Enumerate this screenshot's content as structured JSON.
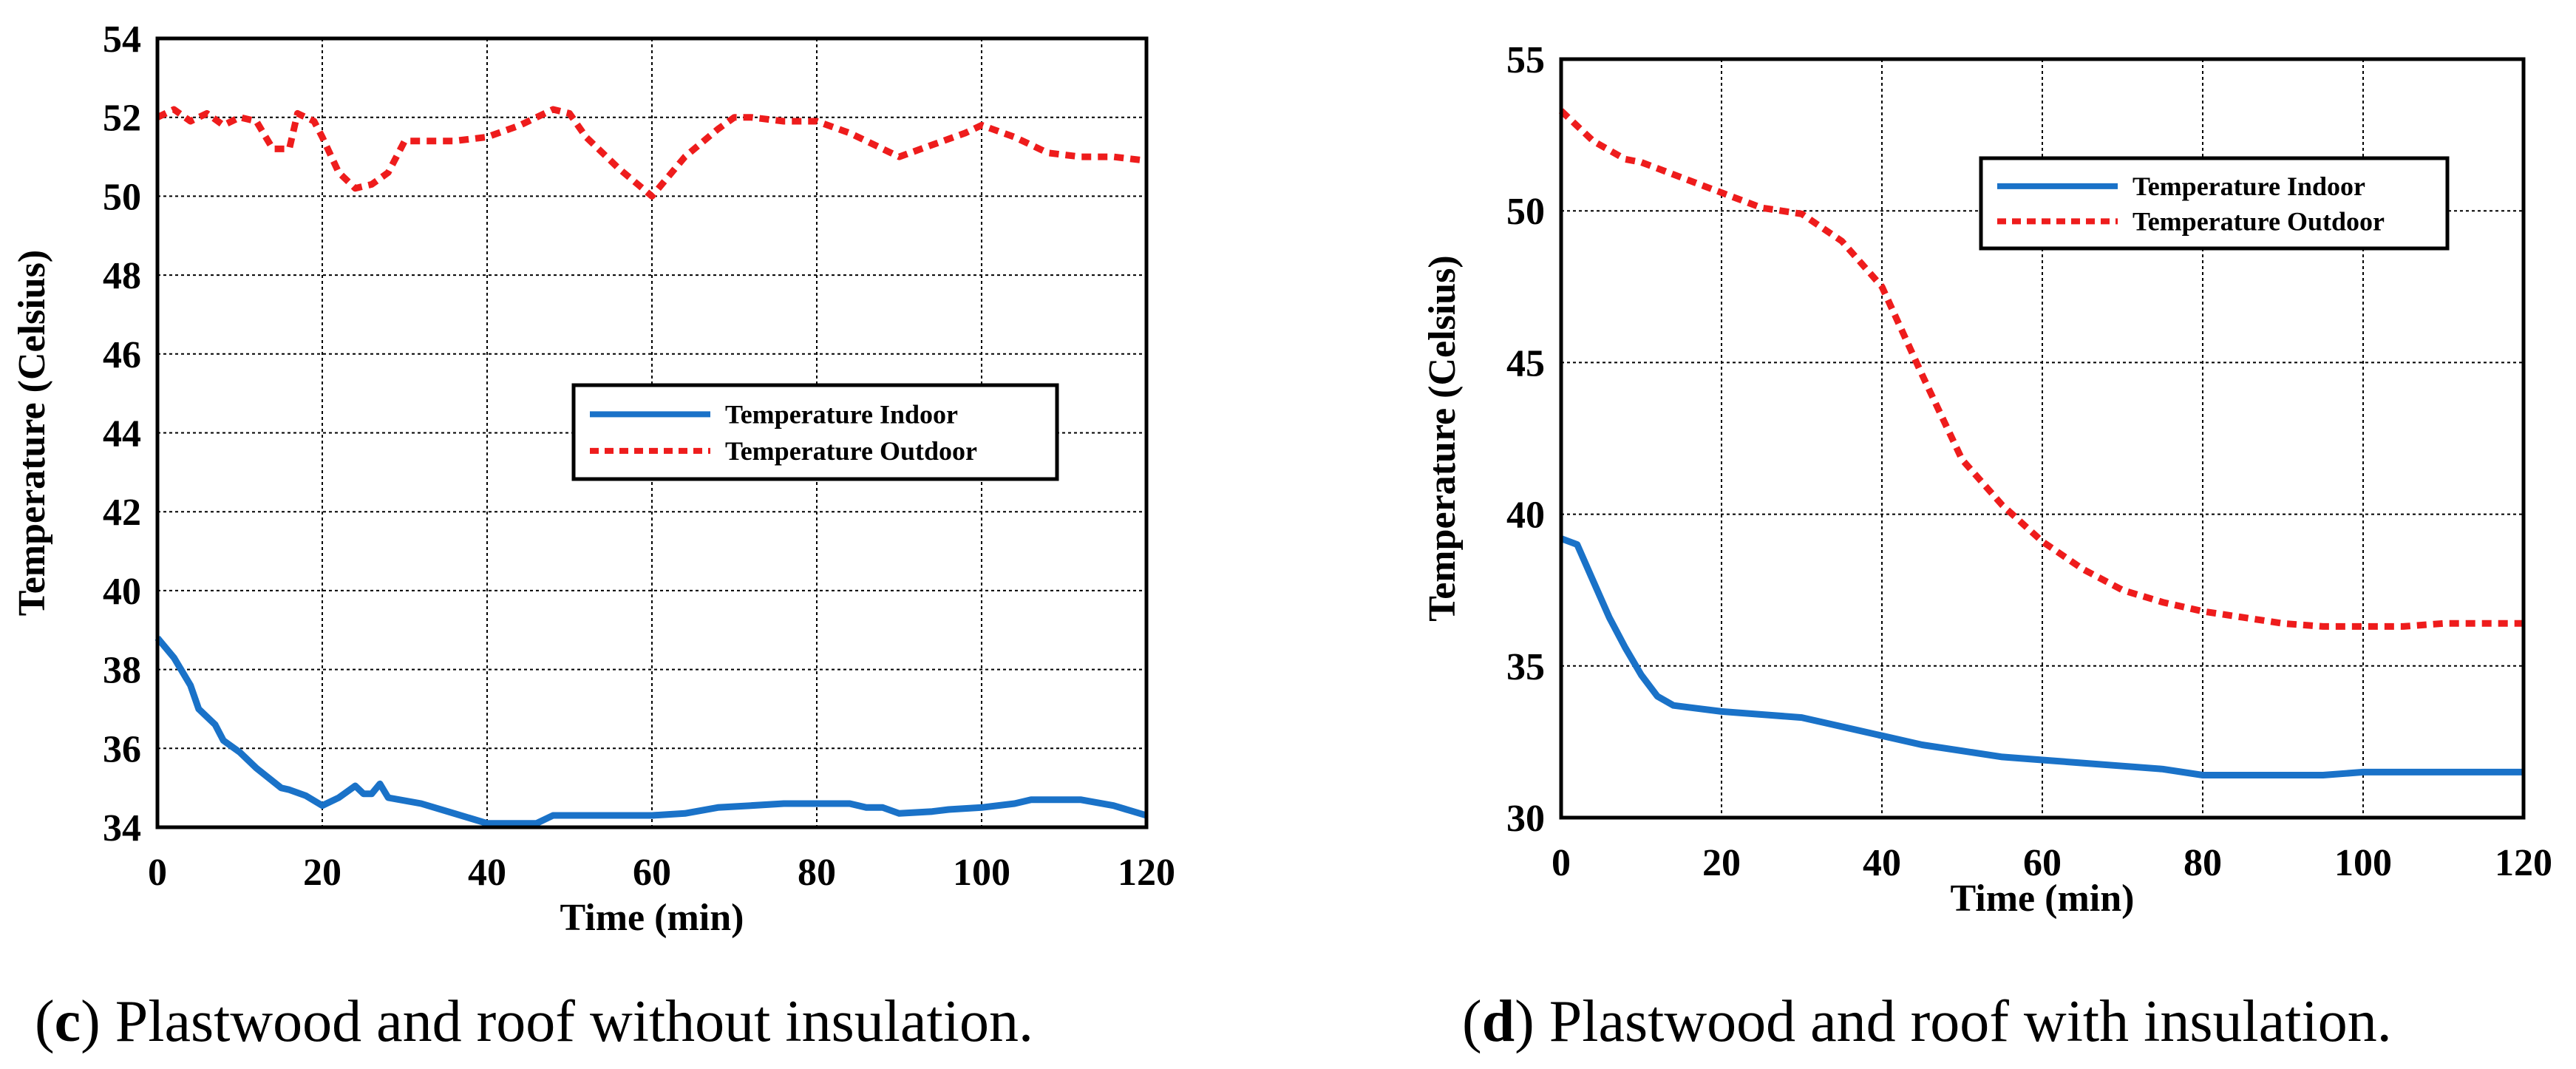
{
  "colors": {
    "indoor": "#1a72c8",
    "outdoor": "#ee1c1c"
  },
  "chart_data": [
    {
      "type": "line",
      "xlabel": "Time (min)",
      "ylabel": "Temperature (Celsius)",
      "xlim": [
        0,
        120
      ],
      "ylim": [
        34,
        54
      ],
      "xticks": [
        0,
        20,
        40,
        60,
        80,
        100,
        120
      ],
      "yticks": [
        34,
        36,
        38,
        40,
        42,
        44,
        46,
        48,
        50,
        52,
        54
      ],
      "grid": true,
      "legend_position": "center-right",
      "caption_letter": "c",
      "caption_text": " Plastwood and roof without insulation.",
      "series": [
        {
          "name": "Temperature Indoor",
          "style": "solid",
          "x": [
            0,
            2,
            4,
            5,
            7,
            8,
            10,
            12,
            15,
            16,
            18,
            20,
            22,
            24,
            25,
            26,
            27,
            28,
            32,
            36,
            40,
            42,
            46,
            48,
            52,
            56,
            60,
            64,
            68,
            72,
            76,
            80,
            84,
            86,
            88,
            90,
            94,
            96,
            100,
            104,
            106,
            108,
            112,
            116,
            120
          ],
          "values": [
            38.8,
            38.3,
            37.6,
            37.0,
            36.6,
            36.2,
            35.9,
            35.5,
            35.0,
            34.95,
            34.8,
            34.55,
            34.75,
            35.05,
            34.85,
            34.85,
            35.1,
            34.75,
            34.6,
            34.35,
            34.1,
            34.1,
            34.1,
            34.3,
            34.3,
            34.3,
            34.3,
            34.35,
            34.5,
            34.55,
            34.6,
            34.6,
            34.6,
            34.5,
            34.5,
            34.35,
            34.4,
            34.45,
            34.5,
            34.6,
            34.7,
            34.7,
            34.7,
            34.55,
            34.3
          ]
        },
        {
          "name": "Temperature Outdoor",
          "style": "dashed",
          "x": [
            0,
            2,
            4,
            6,
            8,
            10,
            12,
            14,
            16,
            17,
            19,
            20,
            22,
            24,
            26,
            28,
            30,
            32,
            36,
            40,
            44,
            48,
            50,
            52,
            56,
            60,
            64,
            68,
            70,
            72,
            76,
            80,
            84,
            88,
            90,
            94,
            98,
            100,
            104,
            108,
            112,
            116,
            120
          ],
          "values": [
            52.0,
            52.2,
            51.9,
            52.1,
            51.8,
            52.0,
            51.9,
            51.2,
            51.2,
            52.1,
            51.9,
            51.5,
            50.6,
            50.2,
            50.3,
            50.6,
            51.4,
            51.4,
            51.4,
            51.5,
            51.8,
            52.2,
            52.1,
            51.5,
            50.7,
            50.0,
            51.0,
            51.7,
            52.0,
            52.0,
            51.9,
            51.9,
            51.6,
            51.2,
            51.0,
            51.3,
            51.6,
            51.8,
            51.5,
            51.1,
            51.0,
            51.0,
            50.9
          ]
        }
      ]
    },
    {
      "type": "line",
      "xlabel": "Time (min)",
      "ylabel": "Temperature (Celsius)",
      "xlim": [
        0,
        120
      ],
      "ylim": [
        30,
        55
      ],
      "xticks": [
        0,
        20,
        40,
        60,
        80,
        100,
        120
      ],
      "yticks": [
        30,
        35,
        40,
        45,
        50,
        55
      ],
      "grid": true,
      "legend_position": "top-right",
      "caption_letter": "d",
      "caption_text": " Plastwood and roof with insulation.",
      "series": [
        {
          "name": "Temperature Indoor",
          "style": "solid",
          "x": [
            0,
            2,
            4,
            6,
            8,
            10,
            12,
            14,
            20,
            25,
            30,
            35,
            40,
            45,
            50,
            55,
            60,
            65,
            70,
            75,
            80,
            85,
            90,
            95,
            100,
            105,
            110,
            115,
            120
          ],
          "values": [
            39.2,
            39.0,
            37.8,
            36.6,
            35.6,
            34.7,
            34.0,
            33.7,
            33.5,
            33.4,
            33.3,
            33.0,
            32.7,
            32.4,
            32.2,
            32.0,
            31.9,
            31.8,
            31.7,
            31.6,
            31.4,
            31.4,
            31.4,
            31.4,
            31.5,
            31.5,
            31.5,
            31.5,
            31.5
          ]
        },
        {
          "name": "Temperature Outdoor",
          "style": "dashed",
          "x": [
            0,
            2,
            4,
            6,
            8,
            10,
            12,
            15,
            18,
            20,
            25,
            30,
            35,
            40,
            45,
            50,
            55,
            60,
            65,
            70,
            75,
            80,
            85,
            90,
            95,
            100,
            105,
            110,
            115,
            120
          ],
          "values": [
            53.3,
            52.8,
            52.3,
            52.0,
            51.7,
            51.6,
            51.4,
            51.1,
            50.8,
            50.6,
            50.1,
            49.9,
            49.0,
            47.5,
            44.6,
            41.8,
            40.3,
            39.1,
            38.2,
            37.5,
            37.1,
            36.8,
            36.6,
            36.4,
            36.3,
            36.3,
            36.3,
            36.4,
            36.4,
            36.4
          ]
        }
      ]
    }
  ]
}
